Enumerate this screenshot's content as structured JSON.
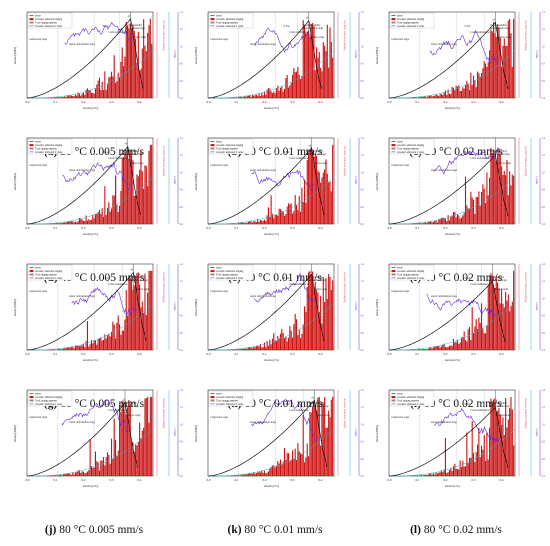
{
  "legend": {
    "stress": "stress",
    "ringing": "Acoustic emission ringing",
    "total": "Total ringing number",
    "bvalue": "Acoustic emission b value"
  },
  "axes": {
    "xlabel": "strain (ε%)",
    "ylabel": "stress (MPa)",
    "y2label": "Acoustic emission ringing",
    "y3label": "b value",
    "xticks": [
      "0.0",
      "0.1",
      "0.2",
      "0.3",
      "0.4"
    ],
    "b_ticks": [
      "0.4",
      "0.6",
      "0.8",
      "1.0",
      "1.2",
      "1.4"
    ]
  },
  "stage_labels": {
    "compaction": "compaction stage",
    "elastic": "elastic deformation stage",
    "crack_instability": "Crack instability",
    "development": "Development stage",
    "failure": "failure stage",
    "crack_stabilization": "Crack stabilization",
    "sigma_c": "0.5σc",
    "peak": "σf"
  },
  "colors": {
    "stress": "#111111",
    "ringing": "#cc1111",
    "total": "#b08080",
    "bvalue": "#6a2bd6",
    "cyan": "#28b8d8",
    "pink": "#e0507a"
  },
  "panels": [
    {
      "letter": "(a)",
      "label": "30 °C 0.005 mm/s",
      "peak_strain": 0.37,
      "peak_stress": 0.92
    },
    {
      "letter": "(b)",
      "label": "30 °C 0.01 mm/s",
      "peak_strain": 0.36,
      "peak_stress": 0.9
    },
    {
      "letter": "(c)",
      "label": "30 °C 0.02 mm/s",
      "peak_strain": 0.38,
      "peak_stress": 0.88
    },
    {
      "letter": "(d)",
      "label": "40 °C 0.005 mm/s",
      "peak_strain": 0.36,
      "peak_stress": 0.9
    },
    {
      "letter": "(e)",
      "label": "40 °C 0.01 mm/s",
      "peak_strain": 0.37,
      "peak_stress": 0.88
    },
    {
      "letter": "(f)",
      "label": "40 °C 0.02 mm/s",
      "peak_strain": 0.38,
      "peak_stress": 0.8
    },
    {
      "letter": "(g)",
      "label": "60 °C 0.005 mm/s",
      "peak_strain": 0.38,
      "peak_stress": 0.9
    },
    {
      "letter": "(h)",
      "label": "60 °C 0.01 mm/s",
      "peak_strain": 0.37,
      "peak_stress": 0.88
    },
    {
      "letter": "(i)",
      "label": "60 °C 0.02 mm/s",
      "peak_strain": 0.37,
      "peak_stress": 0.8
    },
    {
      "letter": "(j)",
      "label": "80 °C 0.005 mm/s",
      "peak_strain": 0.35,
      "peak_stress": 0.85
    },
    {
      "letter": "(k)",
      "label": "80 °C 0.01 mm/s",
      "peak_strain": 0.38,
      "peak_stress": 0.88
    },
    {
      "letter": "(l)",
      "label": "80 °C 0.02 mm/s",
      "peak_strain": 0.38,
      "peak_stress": 0.8
    }
  ],
  "chart_data": {
    "type": "bar",
    "title": "",
    "xlabel": "strain (ε%)",
    "ylabel": "stress (MPa)",
    "xlim": [
      0.0,
      0.45
    ],
    "series": [
      {
        "name": "stress",
        "type": "line"
      },
      {
        "name": "Acoustic emission ringing",
        "type": "bar"
      },
      {
        "name": "Total ringing number",
        "type": "line"
      },
      {
        "name": "Acoustic emission b value",
        "type": "line"
      }
    ],
    "panels": [
      "30 °C 0.005 mm/s",
      "30 °C 0.01 mm/s",
      "30 °C 0.02 mm/s",
      "40 °C 0.005 mm/s",
      "40 °C 0.01 mm/s",
      "40 °C 0.02 mm/s",
      "60 °C 0.005 mm/s",
      "60 °C 0.01 mm/s",
      "60 °C 0.02 mm/s",
      "80 °C 0.005 mm/s",
      "80 °C 0.01 mm/s",
      "80 °C 0.02 mm/s"
    ]
  }
}
